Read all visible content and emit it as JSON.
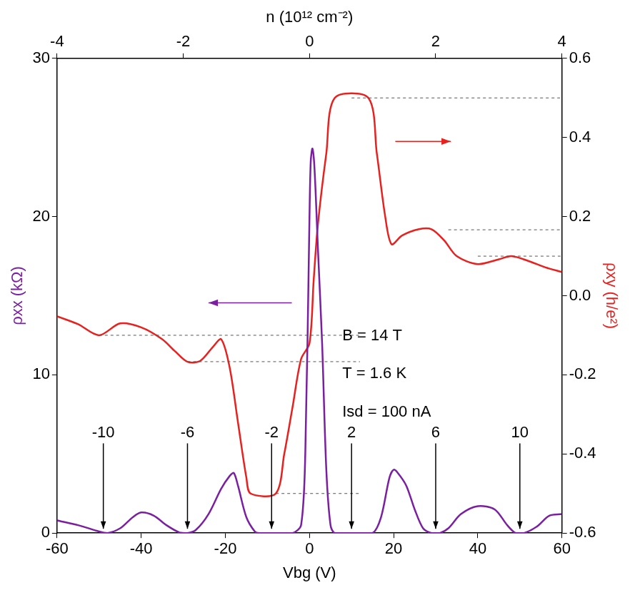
{
  "chart_data": {
    "type": "line",
    "x_label": "Vbg (V)",
    "x2_label": "n (10¹² cm⁻²)",
    "y_label": "ρxx (kΩ)",
    "y2_label": "ρxy (h/e²)",
    "xlim": [
      -60,
      60
    ],
    "xticks": [
      -60,
      -40,
      -20,
      0,
      20,
      40,
      60
    ],
    "x2lim": [
      -4,
      4
    ],
    "x2ticks": [
      -4,
      -2,
      0,
      2,
      4
    ],
    "ylim": [
      0,
      30
    ],
    "yticks": [
      0,
      10,
      20,
      30
    ],
    "y2lim": [
      -0.6,
      0.6
    ],
    "y2ticks": [
      -0.6,
      -0.4,
      -0.2,
      {
        "value": 0,
        "label": "0.0"
      },
      0.2,
      0.4,
      0.6
    ],
    "grid": false,
    "series": [
      {
        "color": "#7b1fa2",
        "axis": "y",
        "x": [
          -60,
          -55,
          -50,
          -48,
          -45,
          -42,
          -40,
          -37,
          -34,
          -31,
          -29,
          -27,
          -24,
          -21,
          -19,
          -18,
          -17,
          -15,
          -13,
          -12,
          -8,
          -4,
          -2,
          -1,
          0,
          0.3,
          0.7,
          1.2,
          2,
          3,
          4,
          5,
          6,
          10,
          15,
          17,
          19,
          20,
          21,
          23,
          25,
          27,
          29,
          31,
          33,
          36,
          40,
          44,
          47,
          49,
          51,
          54,
          57,
          60
        ],
        "values": [
          0.8,
          0.5,
          0.1,
          0,
          0.3,
          1.0,
          1.3,
          1.1,
          0.5,
          0.05,
          0,
          0.2,
          1.2,
          2.8,
          3.6,
          3.8,
          3.0,
          1.0,
          0.1,
          0,
          0,
          0,
          0.5,
          5,
          20,
          23.5,
          24.3,
          23,
          18,
          12,
          4,
          0.5,
          0,
          0,
          0,
          1,
          3.5,
          4.0,
          3.8,
          3.0,
          1.5,
          0.3,
          0,
          0,
          0.3,
          1.2,
          1.7,
          1.5,
          0.5,
          0,
          0,
          0.4,
          1.1,
          1.2
        ]
      },
      {
        "color": "#e8211f",
        "axis": "y2",
        "x": [
          -60,
          -55,
          -50,
          -45,
          -40,
          -35,
          -32,
          -29,
          -26,
          -23,
          -21,
          -19,
          -17,
          -15,
          -14,
          -8,
          -6,
          -4,
          -2,
          0,
          1,
          2,
          4,
          6,
          14,
          16,
          18,
          19.5,
          22,
          26,
          29,
          32,
          35,
          40,
          45,
          48,
          52,
          56,
          60
        ],
        "values": [
          -0.052,
          -0.072,
          -0.1,
          -0.07,
          -0.08,
          -0.11,
          -0.14,
          -0.167,
          -0.165,
          -0.13,
          -0.11,
          -0.18,
          -0.32,
          -0.46,
          -0.5,
          -0.5,
          -0.4,
          -0.28,
          -0.16,
          -0.12,
          0.04,
          0.18,
          0.36,
          0.5,
          0.5,
          0.36,
          0.2,
          0.13,
          0.152,
          0.168,
          0.168,
          0.14,
          0.1,
          0.08,
          0.092,
          0.1,
          0.088,
          0.072,
          0.06
        ]
      }
    ],
    "reference_lines": [
      {
        "axis": "y2",
        "value": 0.5,
        "x": [
          10,
          60
        ],
        "line_style": "dashed"
      },
      {
        "axis": "y2",
        "value": 0.1667,
        "x": [
          33,
          60
        ],
        "line_style": "dashed"
      },
      {
        "axis": "y2",
        "value": 0.1,
        "x": [
          40,
          60
        ],
        "line_style": "dashed"
      },
      {
        "axis": "y2",
        "value": -0.1,
        "x": [
          -50,
          12
        ],
        "line_style": "dashed"
      },
      {
        "axis": "y2",
        "value": -0.1667,
        "x": [
          -29,
          12
        ],
        "line_style": "dashed"
      },
      {
        "axis": "y2",
        "value": -0.5,
        "x": [
          -8,
          12
        ],
        "line_style": "dashed"
      }
    ],
    "filling_factors": [
      {
        "label": "-10",
        "x": -49
      },
      {
        "label": "-6",
        "x": -29
      },
      {
        "label": "-2",
        "x": -9
      },
      {
        "label": "2",
        "x": 10
      },
      {
        "label": "6",
        "x": 30
      },
      {
        "label": "10",
        "x": 50
      }
    ],
    "annotations": [
      "B = 14 T",
      "T = 1.6 K",
      "Isd = 100 nA"
    ]
  }
}
